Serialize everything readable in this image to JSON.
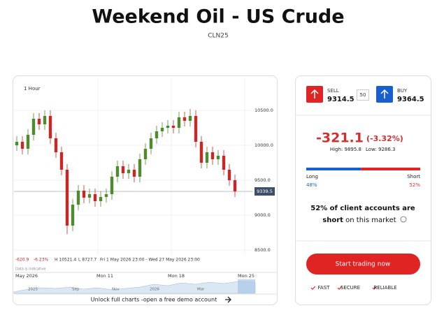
{
  "header": {
    "title": "Weekend Oil - US Crude",
    "subtitle": "CLN25"
  },
  "chart": {
    "type": "candlestick",
    "timeframe": "1 Hour",
    "ylim": [
      8430,
      10960
    ],
    "yticks": [
      {
        "value": 8500,
        "label": "8500.0"
      },
      {
        "value": 9000,
        "label": "9000.0"
      },
      {
        "value": 9500,
        "label": "9500.0"
      },
      {
        "value": 10000,
        "label": "10000.0"
      },
      {
        "value": 10500,
        "label": "10500.0"
      }
    ],
    "current": {
      "value": 9339.5,
      "label": "9339.5"
    },
    "up_color": "#4f8a2e",
    "down_color": "#c62828",
    "open": [
      10000,
      10050,
      9950,
      10150,
      10380,
      10300,
      10420,
      10100,
      9900,
      9650,
      8850,
      9150,
      9350,
      9250,
      9300,
      9200,
      9260,
      9300,
      9550,
      9700,
      9600,
      9650,
      9550,
      9800,
      9950,
      10100,
      10200,
      10250,
      10280,
      10250,
      10400,
      10350,
      10420,
      10050,
      9750,
      9900,
      9800,
      9850,
      9650,
      9500
    ],
    "high": [
      10130,
      10130,
      10230,
      10460,
      10460,
      10500,
      10500,
      10180,
      9980,
      9730,
      9230,
      9430,
      9430,
      9380,
      9380,
      9340,
      9380,
      9630,
      9780,
      9780,
      9730,
      9730,
      9880,
      10030,
      10180,
      10280,
      10330,
      10360,
      10360,
      10480,
      10480,
      10521.4,
      10500,
      10130,
      9980,
      9980,
      9930,
      9930,
      9730,
      9580
    ],
    "low": [
      9920,
      9870,
      9870,
      10070,
      10220,
      10220,
      10020,
      9820,
      9570,
      8727.7,
      8770,
      9070,
      9170,
      9170,
      9120,
      9120,
      9180,
      9220,
      9470,
      9520,
      9520,
      9470,
      9470,
      9720,
      9870,
      10020,
      10120,
      10170,
      10170,
      10170,
      10270,
      10270,
      9970,
      9670,
      9670,
      9720,
      9720,
      9570,
      9420,
      9260
    ],
    "close": [
      10050,
      9950,
      10150,
      10380,
      10300,
      10420,
      10100,
      9900,
      9650,
      8850,
      9150,
      9350,
      9250,
      9300,
      9200,
      9260,
      9300,
      9550,
      9700,
      9600,
      9650,
      9550,
      9800,
      9950,
      10100,
      10200,
      10250,
      10280,
      10250,
      10400,
      10350,
      10420,
      10050,
      9750,
      9900,
      9800,
      9850,
      9650,
      9500,
      9340
    ],
    "info": {
      "change": "-620.9",
      "percent": "-6.23%",
      "high": "H 10521.4",
      "low": "L 8727.7",
      "range": "Fri 1 May 2026 23:00 - Wed 27 May 2026 23:00"
    },
    "note": "Data is indicative",
    "axis_labels": [
      "May 2026",
      "Mon 11",
      "Mon 18",
      "Mon 25"
    ],
    "navigator_labels": [
      "2025",
      "Sep",
      "Nov",
      "2026",
      "Mar"
    ],
    "cta": "Unlock full charts -open a free demo account"
  },
  "trade": {
    "sell": {
      "label": "SELL",
      "price": "9314.5"
    },
    "spread": "50",
    "buy": {
      "label": "BUY",
      "price": "9364.5"
    },
    "change": "-321.1",
    "change_percent": "(-3.32%)",
    "high": "High: 9895.8",
    "low": "Low: 9286.3"
  },
  "sentiment": {
    "long": {
      "label": "Long",
      "value": 48,
      "value_label": "48%"
    },
    "short": {
      "label": "Short",
      "value": 52,
      "value_label": "52%"
    },
    "line1": "52% of client accounts are",
    "line2_bold": "short",
    "line2_rest": "on this market"
  },
  "button": "Start trading now",
  "features": [
    "FAST",
    "SECURE",
    "RELIABLE"
  ]
}
